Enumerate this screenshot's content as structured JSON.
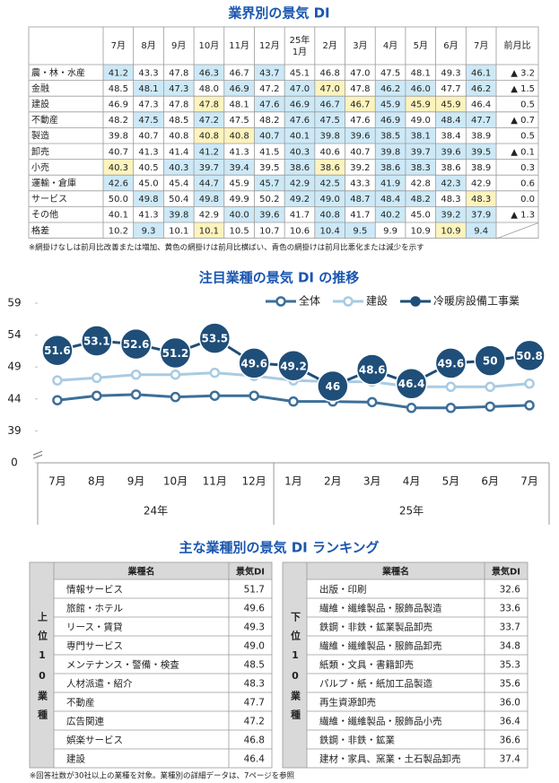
{
  "table": {
    "title": "業界別の景気 DI",
    "header": [
      "7月",
      "8月",
      "9月",
      "10月",
      "11月",
      "12月",
      [
        "25年",
        "1月"
      ],
      "2月",
      "3月",
      "4月",
      "5月",
      "6月",
      "7月",
      "前月比"
    ],
    "shade_colors": {
      "b": "#cde9f7",
      "y": "#fdf3bd"
    },
    "rows": [
      {
        "label": "農・林・水産",
        "values": [
          "41.2",
          "43.3",
          "47.8",
          "46.3",
          "46.7",
          "43.7",
          "45.1",
          "46.8",
          "47.0",
          "47.5",
          "48.1",
          "49.3",
          "46.1"
        ],
        "change": "▲ 3.2",
        "shading": "b..b.b......b"
      },
      {
        "label": "金融",
        "values": [
          "48.5",
          "48.1",
          "47.3",
          "48.0",
          "46.9",
          "47.2",
          "47.0",
          "47.0",
          "47.8",
          "46.2",
          "46.0",
          "47.7",
          "46.2"
        ],
        "change": "▲ 1.5",
        "shading": ".bb.b.by.bb.b"
      },
      {
        "label": "建設",
        "values": [
          "46.9",
          "47.3",
          "47.8",
          "47.8",
          "48.1",
          "47.6",
          "46.9",
          "46.7",
          "46.7",
          "45.9",
          "45.9",
          "45.9",
          "46.4"
        ],
        "change": "0.5",
        "shading": "...y.bbbybyy."
      },
      {
        "label": "不動産",
        "values": [
          "48.2",
          "47.5",
          "48.5",
          "47.2",
          "47.5",
          "48.2",
          "47.6",
          "47.5",
          "47.6",
          "46.9",
          "49.0",
          "48.4",
          "47.7"
        ],
        "change": "▲ 0.7",
        "shading": ".b.b..bb.b.bb"
      },
      {
        "label": "製造",
        "values": [
          "39.8",
          "40.7",
          "40.8",
          "40.8",
          "40.8",
          "40.7",
          "40.1",
          "39.8",
          "39.6",
          "38.5",
          "38.1",
          "38.4",
          "38.9"
        ],
        "change": "0.5",
        "shading": "...yybbbbbb.."
      },
      {
        "label": "卸売",
        "values": [
          "40.7",
          "41.3",
          "41.4",
          "41.2",
          "41.3",
          "41.5",
          "40.3",
          "40.6",
          "40.7",
          "39.8",
          "39.7",
          "39.6",
          "39.5"
        ],
        "change": "▲ 0.1",
        "shading": "...b..b..bbbb"
      },
      {
        "label": "小売",
        "values": [
          "40.3",
          "40.5",
          "40.3",
          "39.7",
          "39.4",
          "39.5",
          "38.6",
          "38.6",
          "39.2",
          "38.6",
          "38.3",
          "38.6",
          "38.9"
        ],
        "change": "0.3",
        "shading": "y.bbb.by.bb.."
      },
      {
        "label": "運輸・倉庫",
        "values": [
          "42.6",
          "45.0",
          "45.4",
          "44.7",
          "45.9",
          "45.7",
          "42.9",
          "42.5",
          "43.3",
          "41.9",
          "42.8",
          "42.3",
          "42.9"
        ],
        "change": "0.6",
        "shading": "b..b.bbb.b.b."
      },
      {
        "label": "サービス",
        "values": [
          "50.0",
          "49.8",
          "50.4",
          "49.8",
          "49.9",
          "50.2",
          "49.2",
          "49.0",
          "48.7",
          "48.4",
          "48.2",
          "48.3",
          "48.3"
        ],
        "change": "0.0",
        "shading": ".b.b..bbbbb.y"
      },
      {
        "label": "その他",
        "values": [
          "40.1",
          "41.3",
          "39.8",
          "42.9",
          "40.0",
          "39.6",
          "41.7",
          "40.8",
          "41.7",
          "40.2",
          "45.0",
          "39.2",
          "37.9"
        ],
        "change": "▲ 1.3",
        "shading": "..b.bb.b.b.bb"
      },
      {
        "label": "格差",
        "values": [
          "10.2",
          "9.3",
          "10.1",
          "10.1",
          "10.5",
          "10.7",
          "10.6",
          "10.4",
          "9.5",
          "9.9",
          "10.9",
          "10.9",
          "9.4"
        ],
        "shading": ".b.y...bb..yb"
      }
    ],
    "note": "※網掛けなしは前月比改善または増加、黄色の網掛けは前月比横ばい、青色の網掛けは前月比悪化または減少を示す"
  },
  "chart_data": {
    "type": "line",
    "title": "注目業種の景気 DI の推移",
    "categories": [
      "7月",
      "8月",
      "9月",
      "10月",
      "11月",
      "12月",
      "1月",
      "2月",
      "3月",
      "4月",
      "5月",
      "6月",
      "7月"
    ],
    "x_groups": [
      {
        "label": "24年",
        "count": 6
      },
      {
        "label": "25年",
        "count": 7
      }
    ],
    "ylim": [
      0,
      59
    ],
    "yticks": [
      0,
      39,
      44,
      49,
      54,
      59
    ],
    "axis_break": [
      0,
      39
    ],
    "legend": "top-right",
    "series": [
      {
        "name": "全体",
        "color": "#3d6f99",
        "values": [
          43.8,
          44.5,
          44.7,
          44.3,
          44.5,
          44.5,
          43.6,
          43.6,
          43.5,
          42.6,
          42.6,
          42.8,
          43.0
        ]
      },
      {
        "name": "建設",
        "color": "#a9cbe3",
        "values": [
          46.9,
          47.3,
          47.8,
          47.8,
          48.1,
          47.6,
          46.9,
          46.7,
          46.7,
          45.9,
          45.9,
          45.9,
          46.4
        ]
      },
      {
        "name": "冷暖房設備工事業",
        "color": "#1f4e79",
        "data_labels": true,
        "values": [
          51.6,
          53.1,
          52.6,
          51.2,
          53.5,
          49.6,
          49.2,
          46.0,
          48.6,
          46.4,
          49.6,
          50.0,
          50.8
        ]
      }
    ]
  },
  "ranking": {
    "title": "主な業種別の景気 DI ランキング",
    "groups": [
      {
        "label": "上位10業種",
        "header": [
          "業種名",
          "景気DI"
        ],
        "rows": [
          [
            "情報サービス",
            "51.7"
          ],
          [
            "旅館・ホテル",
            "49.6"
          ],
          [
            "リース・賃貸",
            "49.3"
          ],
          [
            "専門サービス",
            "49.0"
          ],
          [
            "メンテナンス・警備・検査",
            "48.5"
          ],
          [
            "人材派遣・紹介",
            "48.3"
          ],
          [
            "不動産",
            "47.7"
          ],
          [
            "広告関連",
            "47.2"
          ],
          [
            "娯楽サービス",
            "46.8"
          ],
          [
            "建設",
            "46.4"
          ]
        ]
      },
      {
        "label": "下位10業種",
        "header": [
          "業種名",
          "景気DI"
        ],
        "rows": [
          [
            "出版・印刷",
            "32.6"
          ],
          [
            "繊維・繊維製品・服飾品製造",
            "33.6"
          ],
          [
            "鉄鋼・非鉄・鉱業製品卸売",
            "33.7"
          ],
          [
            "繊維・繊維製品・服飾品卸売",
            "34.8"
          ],
          [
            "紙類・文具・書籍卸売",
            "35.3"
          ],
          [
            "パルプ・紙・紙加工品製造",
            "35.6"
          ],
          [
            "再生資源卸売",
            "36.0"
          ],
          [
            "繊維・繊維製品・服飾品小売",
            "36.4"
          ],
          [
            "鉄鋼・非鉄・鉱業",
            "36.6"
          ],
          [
            "建材・家具、窯業・土石製品卸売",
            "37.4"
          ]
        ]
      }
    ],
    "note": "※回答社数が30社以上の業種を対象。業種別の詳細データは、7ページを参照"
  }
}
